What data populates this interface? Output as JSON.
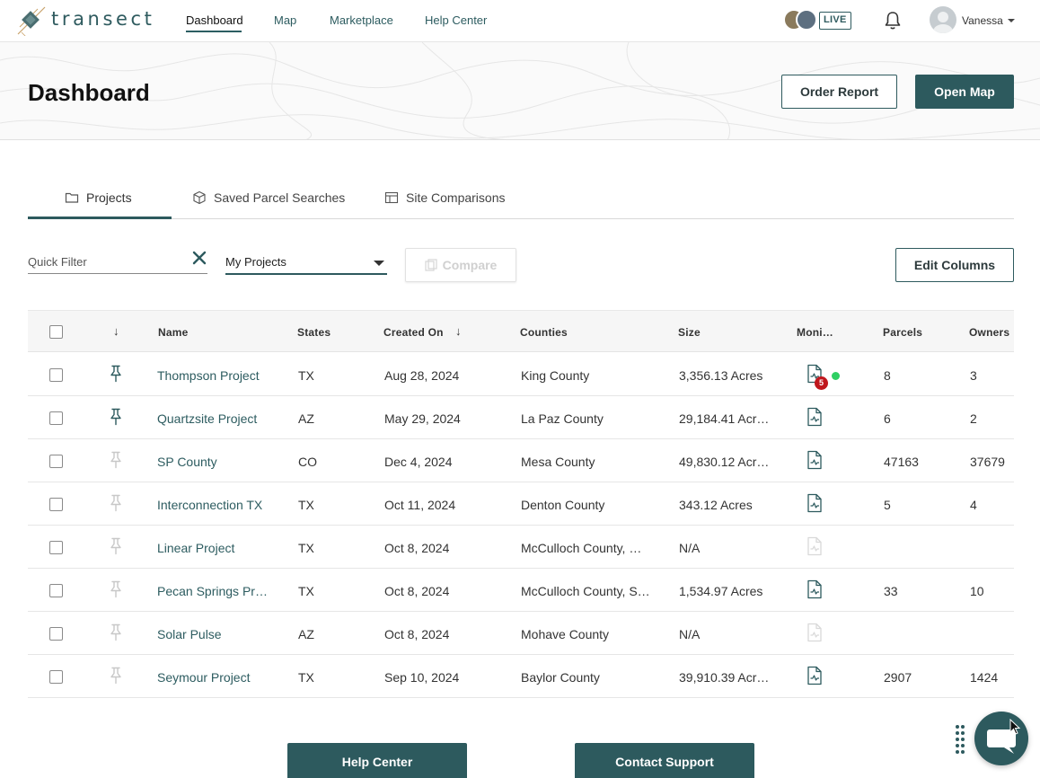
{
  "brand": {
    "name": "transect"
  },
  "nav": {
    "links": [
      {
        "label": "Dashboard",
        "active": true
      },
      {
        "label": "Map"
      },
      {
        "label": "Marketplace"
      },
      {
        "label": "Help Center"
      }
    ],
    "live_label": "LIVE",
    "user_name": "Vanessa"
  },
  "header": {
    "title": "Dashboard",
    "order_report_label": "Order Report",
    "open_map_label": "Open Map"
  },
  "tabs": [
    {
      "label": "Projects",
      "icon": "folder-icon",
      "active": true
    },
    {
      "label": "Saved Parcel Searches",
      "icon": "cube-icon"
    },
    {
      "label": "Site Comparisons",
      "icon": "table-icon"
    }
  ],
  "filters": {
    "quick_filter_placeholder": "Quick Filter",
    "scope_selected": "My Projects",
    "compare_label": "Compare",
    "edit_columns_label": "Edit Columns"
  },
  "table": {
    "columns": {
      "pin": "↓",
      "name": "Name",
      "states": "States",
      "created_on": "Created On",
      "created_sort": "↓",
      "counties": "Counties",
      "size": "Size",
      "monitoring": "Moni…",
      "parcels": "Parcels",
      "owners": "Owners"
    },
    "rows": [
      {
        "name": "Thompson Project",
        "state": "TX",
        "created": "Aug 28, 2024",
        "county": "King County",
        "size": "3,356.13 Acres",
        "parcels": "8",
        "owners": "3",
        "pinned": true,
        "monitor": "active",
        "monitor_count": "5"
      },
      {
        "name": "Quartzsite Project",
        "state": "AZ",
        "created": "May 29, 2024",
        "county": "La Paz County",
        "size": "29,184.41 Acr…",
        "parcels": "6",
        "owners": "2",
        "pinned": true,
        "monitor": "on"
      },
      {
        "name": "SP County",
        "state": "CO",
        "created": "Dec 4, 2024",
        "county": "Mesa County",
        "size": "49,830.12 Acr…",
        "parcels": "47163",
        "owners": "37679",
        "pinned": false,
        "monitor": "on"
      },
      {
        "name": "Interconnection TX",
        "state": "TX",
        "created": "Oct 11, 2024",
        "county": "Denton County",
        "size": "343.12 Acres",
        "parcels": "5",
        "owners": "4",
        "pinned": false,
        "monitor": "on"
      },
      {
        "name": "Linear Project",
        "state": "TX",
        "created": "Oct 8, 2024",
        "county": "McCulloch County, …",
        "size": "N/A",
        "parcels": "",
        "owners": "",
        "pinned": false,
        "monitor": "off"
      },
      {
        "name": "Pecan Springs Pr…",
        "state": "TX",
        "created": "Oct 8, 2024",
        "county": "McCulloch County, S…",
        "size": "1,534.97 Acres",
        "parcels": "33",
        "owners": "10",
        "pinned": false,
        "monitor": "on"
      },
      {
        "name": "Solar Pulse",
        "state": "AZ",
        "created": "Oct 8, 2024",
        "county": "Mohave County",
        "size": "N/A",
        "parcels": "",
        "owners": "",
        "pinned": false,
        "monitor": "off"
      },
      {
        "name": "Seymour Project",
        "state": "TX",
        "created": "Sep 10, 2024",
        "county": "Baylor County",
        "size": "39,910.39 Acr…",
        "parcels": "2907",
        "owners": "1424",
        "pinned": false,
        "monitor": "on"
      }
    ]
  },
  "footer": {
    "help_center_label": "Help Center",
    "contact_support_label": "Contact Support"
  },
  "colors": {
    "accent": "#2d5a5e",
    "link": "#2d5c60",
    "alert": "#c0171d",
    "online": "#2fcf63"
  },
  "icons": [
    "search-icon",
    "bell-icon",
    "close-icon",
    "pin-icon",
    "document-chart-icon",
    "chat-icon",
    "grip-icon"
  ]
}
